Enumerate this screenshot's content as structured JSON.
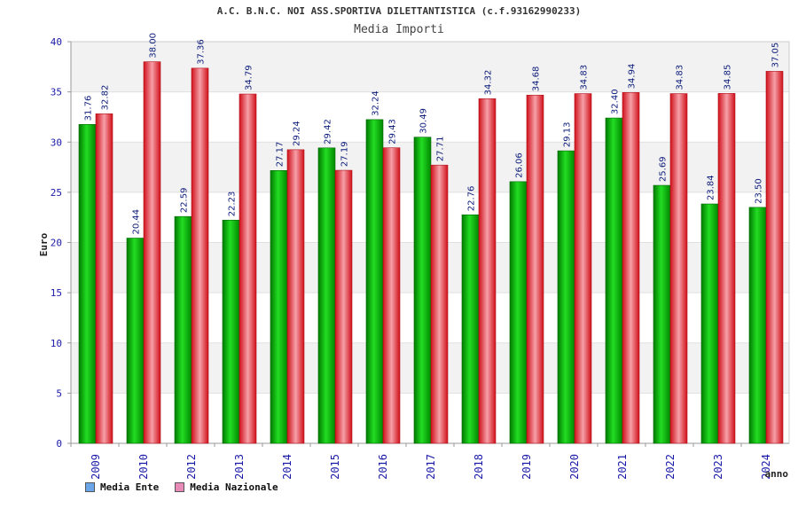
{
  "chart_data": {
    "type": "bar",
    "title": "A.C. B.N.C. NOI ASS.SPORTIVA DILETTANTISTICA (c.f.93162990233)",
    "subtitle": "Media Importi",
    "xlabel": "anno",
    "ylabel": "Euro",
    "ylim": [
      0,
      40
    ],
    "yticks": [
      0,
      5,
      10,
      15,
      20,
      25,
      30,
      35,
      40
    ],
    "grid": true,
    "legend_position": "bottom-left",
    "categories": [
      "2009",
      "2010",
      "2012",
      "2013",
      "2014",
      "2015",
      "2016",
      "2017",
      "2018",
      "2019",
      "2020",
      "2021",
      "2022",
      "2023",
      "2024"
    ],
    "series": [
      {
        "name": "Media Ente",
        "color": "#00b000",
        "values": [
          31.76,
          20.44,
          22.59,
          22.23,
          27.17,
          29.42,
          32.24,
          30.49,
          22.76,
          26.06,
          29.13,
          32.4,
          25.69,
          23.84,
          23.5
        ],
        "labels": [
          "31.76",
          "20.44",
          "22.59",
          "22.23",
          "27.17",
          "29.42",
          "32.24",
          "30.49",
          "22.76",
          "26.06",
          "29.13",
          "32.40",
          "25.69",
          "23.84",
          "23.50"
        ]
      },
      {
        "name": "Media Nazionale",
        "color": "#e8202c",
        "values": [
          32.82,
          38.0,
          37.36,
          34.79,
          29.24,
          27.19,
          29.43,
          27.71,
          34.32,
          34.68,
          34.83,
          34.94,
          34.83,
          34.85,
          37.05
        ],
        "labels": [
          "32.82",
          "38.00",
          "37.36",
          "34.79",
          "29.24",
          "27.19",
          "29.43",
          "27.71",
          "34.32",
          "34.68",
          "34.83",
          "34.94",
          "34.83",
          "34.85",
          "37.05"
        ]
      }
    ],
    "legend": [
      {
        "label": "Media Ente",
        "swatch_color": "#6aa6e8"
      },
      {
        "label": "Media Nazionale",
        "swatch_color": "#e88ab8"
      }
    ]
  }
}
